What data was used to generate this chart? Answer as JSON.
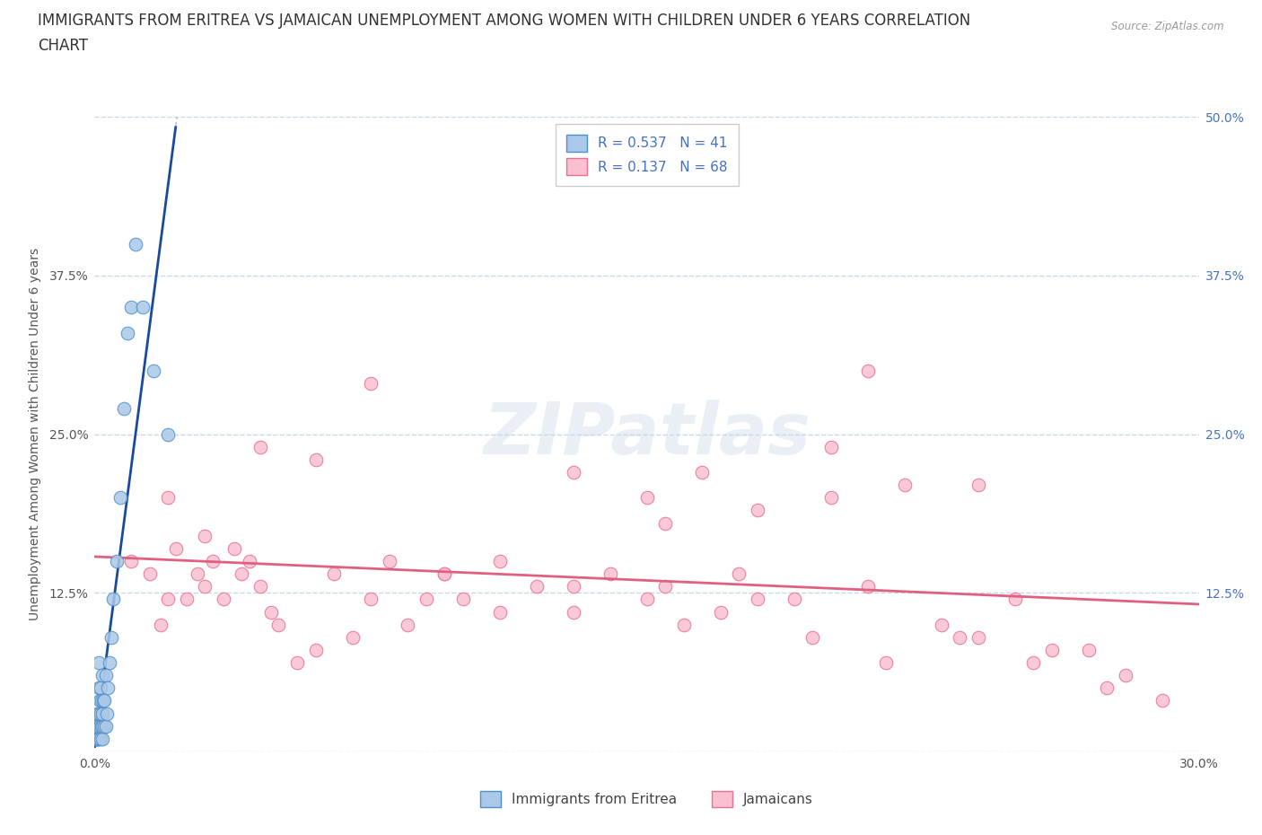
{
  "title_line1": "IMMIGRANTS FROM ERITREA VS JAMAICAN UNEMPLOYMENT AMONG WOMEN WITH CHILDREN UNDER 6 YEARS CORRELATION",
  "title_line2": "CHART",
  "source": "Source: ZipAtlas.com",
  "ylabel": "Unemployment Among Women with Children Under 6 years",
  "xlim": [
    0.0,
    0.3
  ],
  "ylim": [
    0.0,
    0.5
  ],
  "xtick_vals": [
    0.0,
    0.05,
    0.1,
    0.15,
    0.2,
    0.25,
    0.3
  ],
  "ytick_vals": [
    0.0,
    0.125,
    0.25,
    0.375,
    0.5
  ],
  "legend_r1": "R = 0.537   N = 41",
  "legend_r2": "R = 0.137   N = 68",
  "legend_label1": "Immigrants from Eritrea",
  "legend_label2": "Jamaicans",
  "eritrea_face_color": "#aac8e8",
  "eritrea_edge_color": "#5090c8",
  "jamaican_face_color": "#f8c0d0",
  "jamaican_edge_color": "#e87090",
  "eritrea_trend_color": "#1a4a9e",
  "jamaican_trend_color": "#e06080",
  "dashed_color": "#aabbd8",
  "grid_color": "#c8d8ec",
  "right_tick_color": "#4472c4",
  "background_color": "#ffffff",
  "watermark": "ZIPatlas",
  "eritrea_points_x": [
    0.0003,
    0.0004,
    0.0005,
    0.0006,
    0.0007,
    0.0008,
    0.0009,
    0.001,
    0.001,
    0.001,
    0.0012,
    0.0013,
    0.0014,
    0.0015,
    0.0016,
    0.0017,
    0.0018,
    0.0019,
    0.002,
    0.002,
    0.002,
    0.0022,
    0.0023,
    0.0025,
    0.0026,
    0.003,
    0.003,
    0.0033,
    0.0035,
    0.004,
    0.0045,
    0.005,
    0.006,
    0.007,
    0.008,
    0.009,
    0.01,
    0.011,
    0.013,
    0.016,
    0.02
  ],
  "eritrea_points_y": [
    0.01,
    0.02,
    0.01,
    0.03,
    0.01,
    0.02,
    0.01,
    0.03,
    0.05,
    0.07,
    0.01,
    0.02,
    0.04,
    0.01,
    0.03,
    0.05,
    0.02,
    0.04,
    0.01,
    0.03,
    0.06,
    0.02,
    0.04,
    0.02,
    0.04,
    0.02,
    0.06,
    0.03,
    0.05,
    0.07,
    0.09,
    0.12,
    0.15,
    0.2,
    0.27,
    0.33,
    0.35,
    0.4,
    0.35,
    0.3,
    0.25
  ],
  "jamaican_points_x": [
    0.01,
    0.015,
    0.018,
    0.02,
    0.022,
    0.025,
    0.028,
    0.03,
    0.032,
    0.035,
    0.038,
    0.04,
    0.042,
    0.045,
    0.048,
    0.05,
    0.055,
    0.06,
    0.065,
    0.07,
    0.075,
    0.08,
    0.085,
    0.09,
    0.095,
    0.1,
    0.11,
    0.12,
    0.13,
    0.14,
    0.15,
    0.155,
    0.16,
    0.17,
    0.18,
    0.19,
    0.2,
    0.21,
    0.22,
    0.23,
    0.24,
    0.25,
    0.26,
    0.27,
    0.28,
    0.29,
    0.15,
    0.2,
    0.18,
    0.075,
    0.06,
    0.045,
    0.03,
    0.02,
    0.095,
    0.11,
    0.13,
    0.155,
    0.175,
    0.195,
    0.215,
    0.235,
    0.255,
    0.275,
    0.13,
    0.165,
    0.21,
    0.24
  ],
  "jamaican_points_y": [
    0.15,
    0.14,
    0.1,
    0.12,
    0.16,
    0.12,
    0.14,
    0.13,
    0.15,
    0.12,
    0.16,
    0.14,
    0.15,
    0.13,
    0.11,
    0.1,
    0.07,
    0.08,
    0.14,
    0.09,
    0.12,
    0.15,
    0.1,
    0.12,
    0.14,
    0.12,
    0.15,
    0.13,
    0.11,
    0.14,
    0.12,
    0.13,
    0.1,
    0.11,
    0.12,
    0.12,
    0.2,
    0.13,
    0.21,
    0.1,
    0.09,
    0.12,
    0.08,
    0.08,
    0.06,
    0.04,
    0.2,
    0.24,
    0.19,
    0.29,
    0.23,
    0.24,
    0.17,
    0.2,
    0.14,
    0.11,
    0.13,
    0.18,
    0.14,
    0.09,
    0.07,
    0.09,
    0.07,
    0.05,
    0.22,
    0.22,
    0.3,
    0.21
  ],
  "title_fontsize": 12,
  "axis_label_fontsize": 10,
  "tick_fontsize": 10,
  "legend_fontsize": 11
}
